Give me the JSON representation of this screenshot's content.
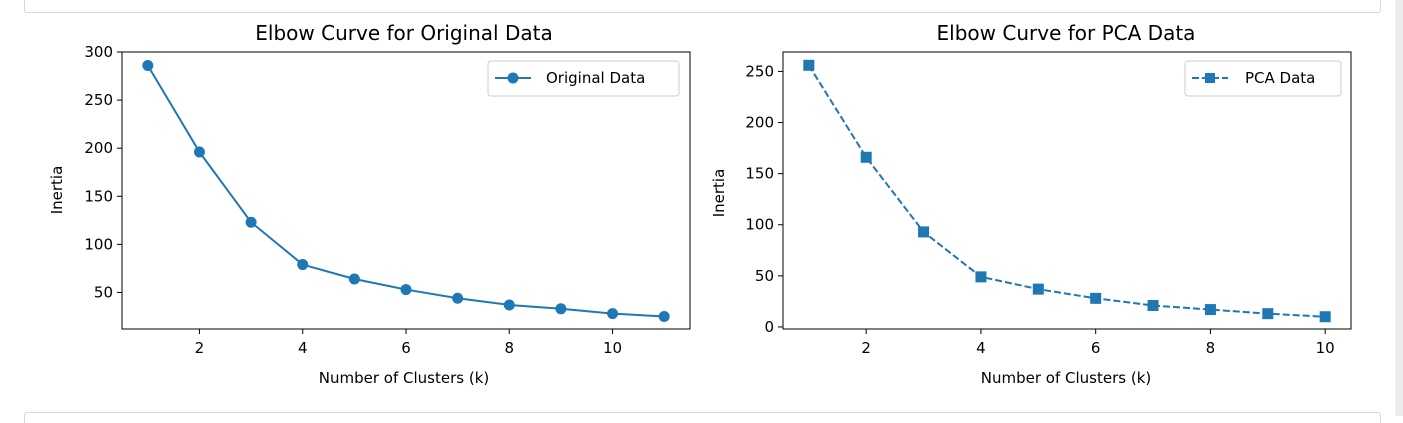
{
  "chart_data": [
    {
      "type": "line",
      "title": "Elbow Curve for Original Data",
      "xlabel": "Number of Clusters (k)",
      "ylabel": "Inertia",
      "x": [
        1,
        2,
        3,
        4,
        5,
        6,
        7,
        8,
        9,
        10,
        11
      ],
      "series": [
        {
          "name": "Original Data",
          "values": [
            286,
            196,
            123,
            79,
            64,
            53,
            44,
            37,
            33,
            28,
            25
          ],
          "color": "#1f77b4",
          "marker": "circle",
          "linestyle": "solid"
        }
      ],
      "xticks": [
        2,
        4,
        6,
        8,
        10
      ],
      "yticks": [
        50,
        100,
        150,
        200,
        250,
        300
      ],
      "xlim": [
        0.5,
        11.5
      ],
      "ylim": [
        12,
        300
      ],
      "grid": false,
      "legend": "top-right"
    },
    {
      "type": "line",
      "title": "Elbow Curve for PCA Data",
      "xlabel": "Number of Clusters (k)",
      "ylabel": "Inertia",
      "x": [
        1,
        2,
        3,
        4,
        5,
        6,
        7,
        8,
        9,
        10
      ],
      "series": [
        {
          "name": "PCA Data",
          "values": [
            256,
            166,
            93,
            49,
            37,
            28,
            21,
            17,
            13,
            10
          ],
          "color": "#1f77b4",
          "marker": "square",
          "linestyle": "dashed"
        }
      ],
      "xticks": [
        2,
        4,
        6,
        8,
        10
      ],
      "yticks": [
        0,
        50,
        100,
        150,
        200,
        250
      ],
      "xlim": [
        0.55,
        10.45
      ],
      "ylim": [
        -2,
        269
      ],
      "grid": false,
      "legend": "top-right"
    }
  ]
}
